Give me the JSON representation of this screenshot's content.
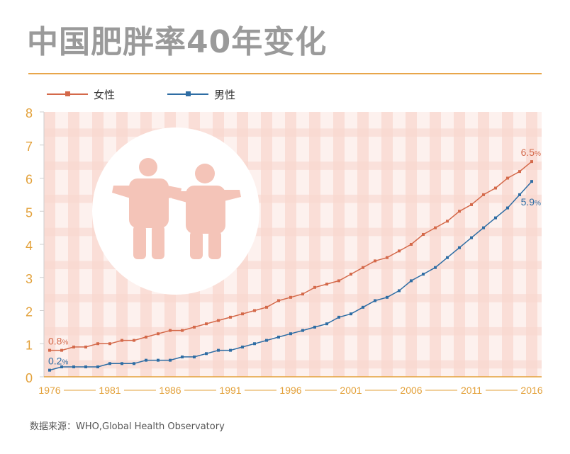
{
  "title": "中国肥胖率40年变化",
  "source": "数据来源：WHO,Global Health Observatory",
  "chart_data": {
    "type": "line",
    "title": "中国肥胖率40年变化",
    "xlabel": "",
    "ylabel": "",
    "ylim": [
      0,
      8
    ],
    "yticks": [
      "0",
      "1",
      "2",
      "3",
      "4",
      "5",
      "6",
      "7",
      "8"
    ],
    "xticks": [
      "1976",
      "1981",
      "1986",
      "1991",
      "1996",
      "2001",
      "2006",
      "2011",
      "2016"
    ],
    "x": [
      1976,
      1977,
      1978,
      1979,
      1980,
      1981,
      1982,
      1983,
      1984,
      1985,
      1986,
      1987,
      1988,
      1989,
      1990,
      1991,
      1992,
      1993,
      1994,
      1995,
      1996,
      1997,
      1998,
      1999,
      2000,
      2001,
      2002,
      2003,
      2004,
      2005,
      2006,
      2007,
      2008,
      2009,
      2010,
      2011,
      2012,
      2013,
      2014,
      2015,
      2016
    ],
    "series": [
      {
        "name": "女性",
        "color": "#d4694a",
        "values": [
          0.8,
          0.8,
          0.9,
          0.9,
          1.0,
          1.0,
          1.1,
          1.1,
          1.2,
          1.3,
          1.4,
          1.4,
          1.5,
          1.6,
          1.7,
          1.8,
          1.9,
          2.0,
          2.1,
          2.3,
          2.4,
          2.5,
          2.7,
          2.8,
          2.9,
          3.1,
          3.3,
          3.5,
          3.6,
          3.8,
          4.0,
          4.3,
          4.5,
          4.7,
          5.0,
          5.2,
          5.5,
          5.7,
          6.0,
          6.2,
          6.5
        ],
        "start_label": "0.8",
        "end_label": "6.5",
        "unit": "%"
      },
      {
        "name": "男性",
        "color": "#2e6da4",
        "values": [
          0.2,
          0.3,
          0.3,
          0.3,
          0.3,
          0.4,
          0.4,
          0.4,
          0.5,
          0.5,
          0.5,
          0.6,
          0.6,
          0.7,
          0.8,
          0.8,
          0.9,
          1.0,
          1.1,
          1.2,
          1.3,
          1.4,
          1.5,
          1.6,
          1.8,
          1.9,
          2.1,
          2.3,
          2.4,
          2.6,
          2.9,
          3.1,
          3.3,
          3.6,
          3.9,
          4.2,
          4.5,
          4.8,
          5.1,
          5.5,
          5.9
        ],
        "start_label": "0.2",
        "end_label": "5.9",
        "unit": "%"
      }
    ],
    "legend": "top-left",
    "background": "pink-plaid",
    "tick_color": "#e3a13a"
  },
  "colors": {
    "title": "#9a9a9a",
    "rule": "#e8a64a",
    "plaid": "#f8d7cf",
    "illustration": "#f4c4b8"
  }
}
